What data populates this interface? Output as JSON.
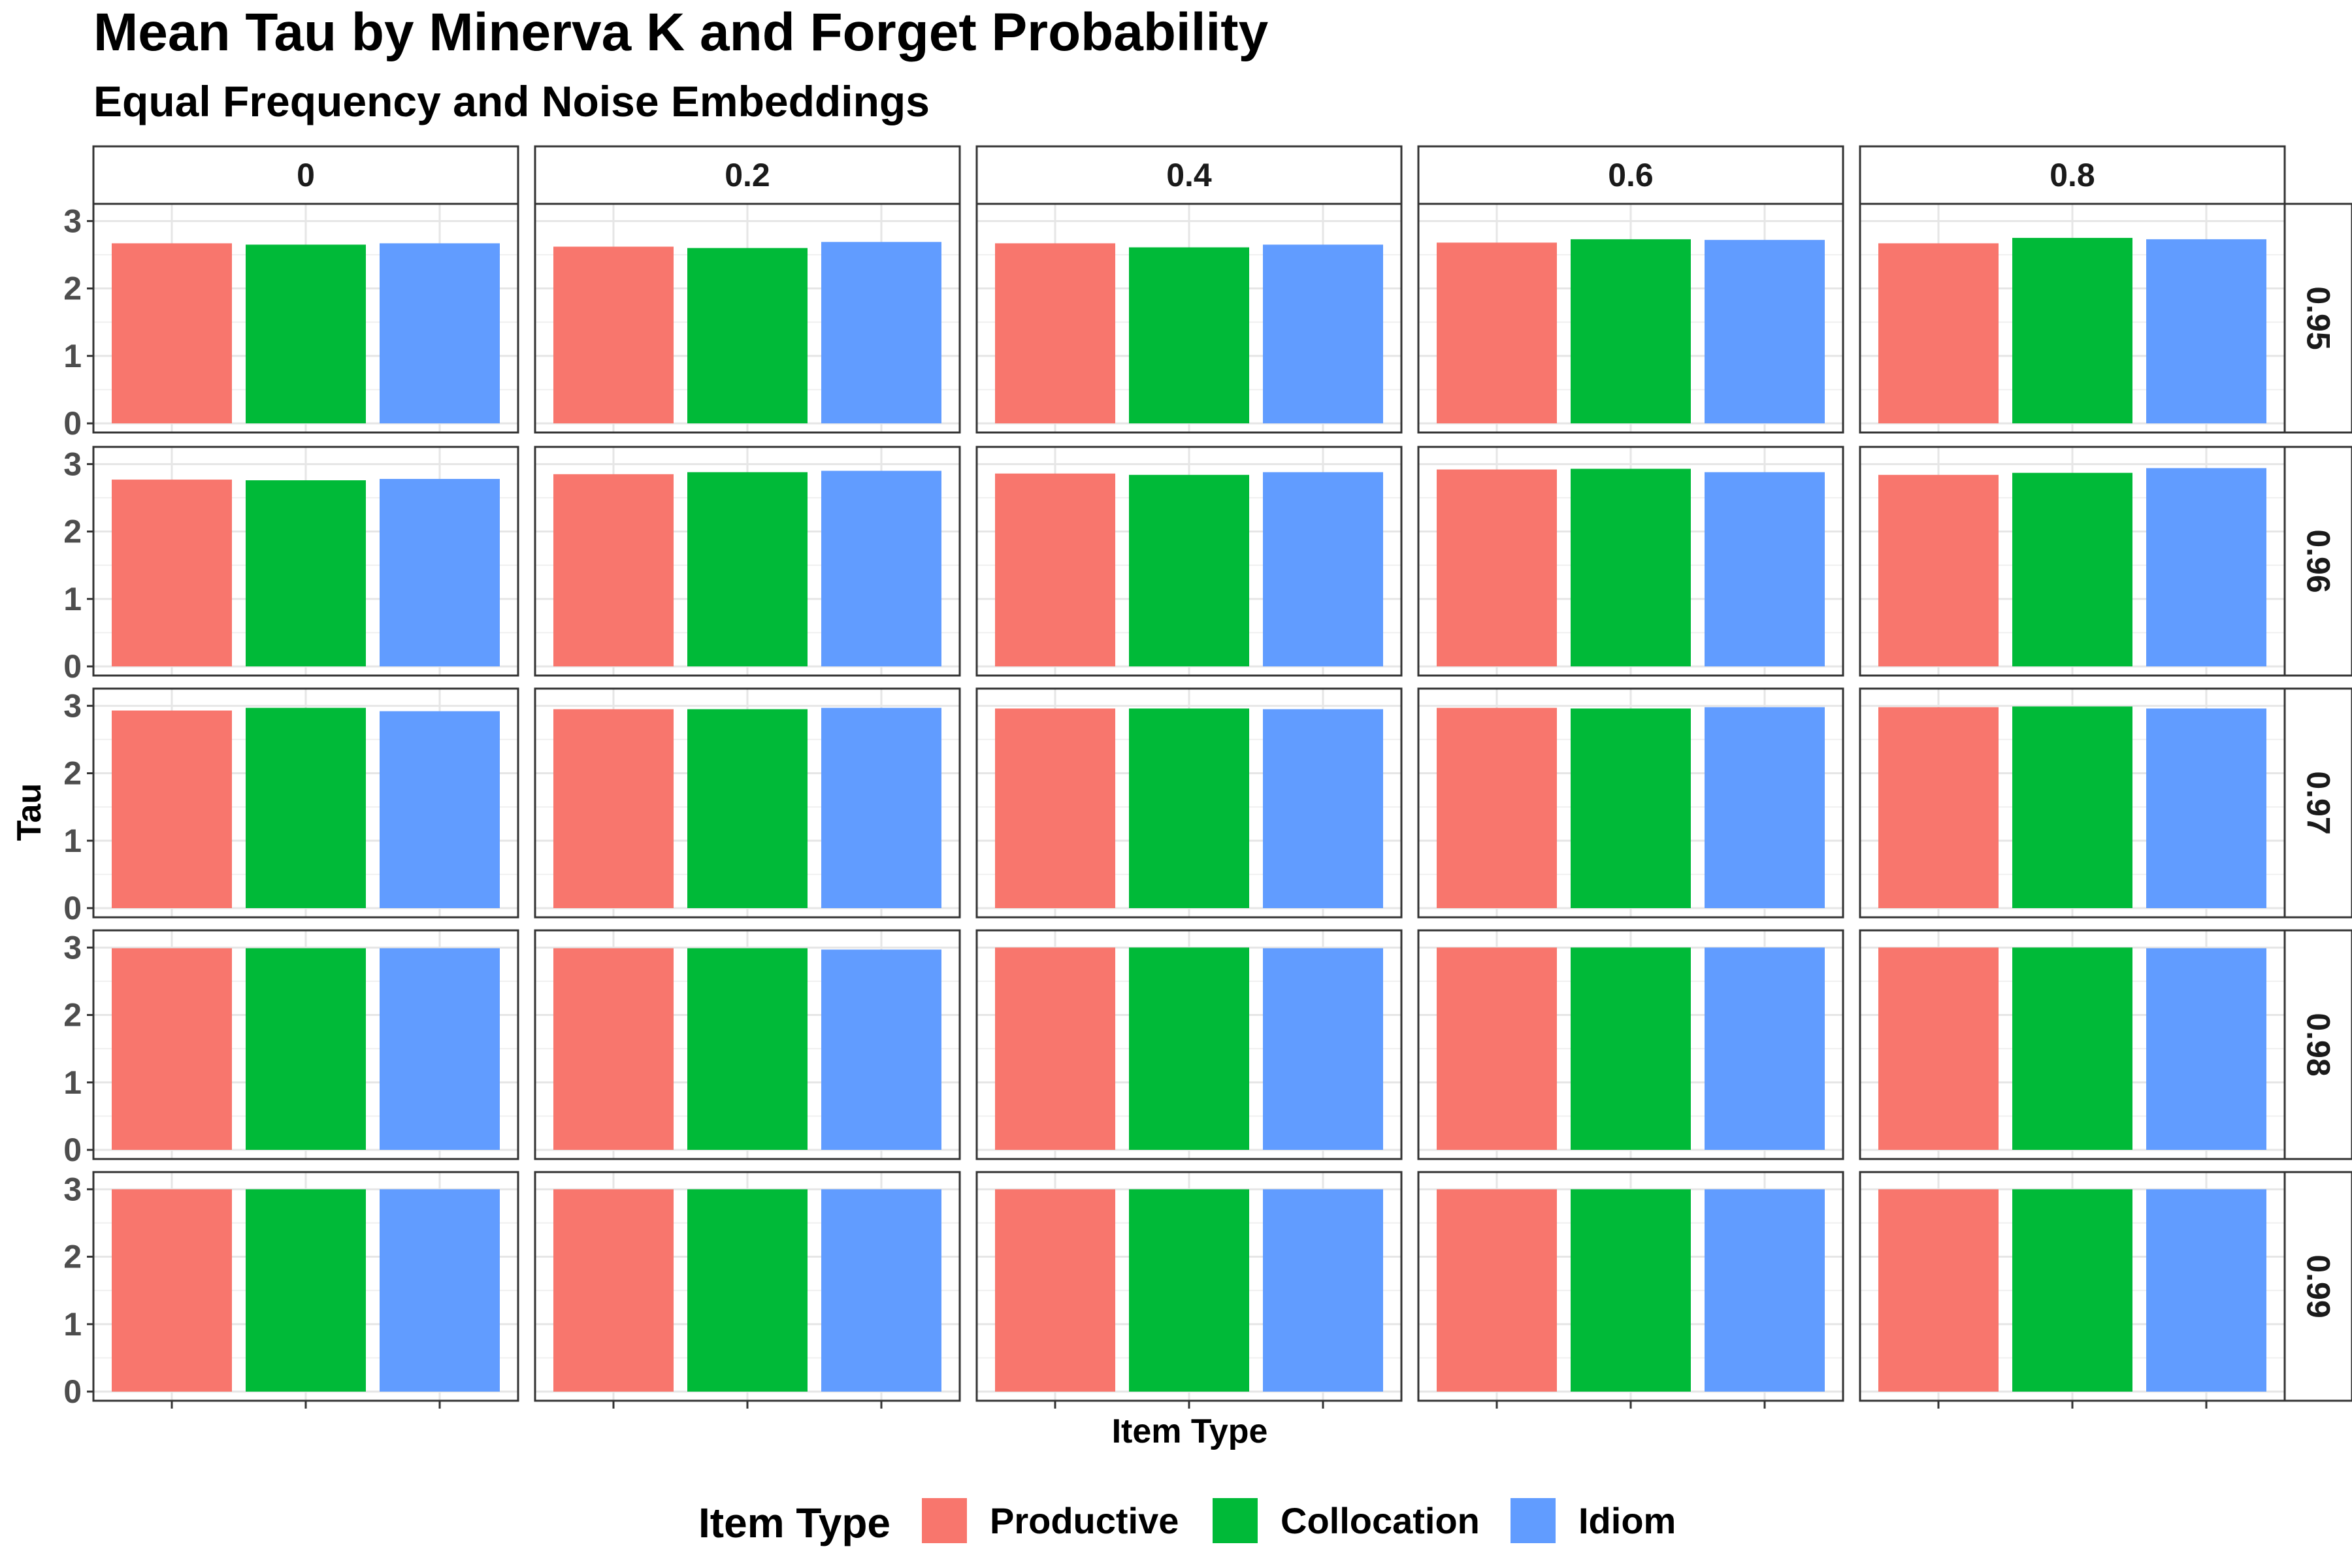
{
  "chart_data": {
    "type": "bar",
    "title": "Mean Tau by Minerva K and Forget Probability",
    "subtitle": "Equal Frequency and Noise Embeddings",
    "xlabel": "Item Type",
    "ylabel": "Tau",
    "ylim": [
      0,
      3.1
    ],
    "y_ticks": [
      0,
      1,
      2,
      3
    ],
    "grid": true,
    "legend": {
      "title": "Item Type",
      "position": "bottom",
      "entries": [
        "Productive",
        "Collocation",
        "Idiom"
      ]
    },
    "categories": [
      "Productive",
      "Collocation",
      "Idiom"
    ],
    "colors": {
      "Productive": "#F8766D",
      "Collocation": "#00BA38",
      "Idiom": "#619CFF"
    },
    "facet_columns": [
      "0",
      "0.2",
      "0.4",
      "0.6",
      "0.8"
    ],
    "facet_rows": [
      "0.95",
      "0.96",
      "0.97",
      "0.98",
      "0.99"
    ],
    "panels": [
      {
        "row": "0.95",
        "col": "0",
        "values": [
          2.67,
          2.65,
          2.67
        ]
      },
      {
        "row": "0.95",
        "col": "0.2",
        "values": [
          2.62,
          2.6,
          2.69
        ]
      },
      {
        "row": "0.95",
        "col": "0.4",
        "values": [
          2.67,
          2.61,
          2.65
        ]
      },
      {
        "row": "0.95",
        "col": "0.6",
        "values": [
          2.68,
          2.73,
          2.72
        ]
      },
      {
        "row": "0.95",
        "col": "0.8",
        "values": [
          2.67,
          2.75,
          2.73
        ]
      },
      {
        "row": "0.96",
        "col": "0",
        "values": [
          2.77,
          2.76,
          2.78
        ]
      },
      {
        "row": "0.96",
        "col": "0.2",
        "values": [
          2.85,
          2.88,
          2.9
        ]
      },
      {
        "row": "0.96",
        "col": "0.4",
        "values": [
          2.86,
          2.84,
          2.88
        ]
      },
      {
        "row": "0.96",
        "col": "0.6",
        "values": [
          2.92,
          2.93,
          2.88
        ]
      },
      {
        "row": "0.96",
        "col": "0.8",
        "values": [
          2.84,
          2.87,
          2.94
        ]
      },
      {
        "row": "0.97",
        "col": "0",
        "values": [
          2.93,
          2.97,
          2.92
        ]
      },
      {
        "row": "0.97",
        "col": "0.2",
        "values": [
          2.95,
          2.95,
          2.97
        ]
      },
      {
        "row": "0.97",
        "col": "0.4",
        "values": [
          2.96,
          2.96,
          2.95
        ]
      },
      {
        "row": "0.97",
        "col": "0.6",
        "values": [
          2.97,
          2.96,
          2.98
        ]
      },
      {
        "row": "0.97",
        "col": "0.8",
        "values": [
          2.98,
          2.99,
          2.96
        ]
      },
      {
        "row": "0.98",
        "col": "0",
        "values": [
          2.99,
          2.99,
          2.99
        ]
      },
      {
        "row": "0.98",
        "col": "0.2",
        "values": [
          2.99,
          2.99,
          2.97
        ]
      },
      {
        "row": "0.98",
        "col": "0.4",
        "values": [
          3.0,
          3.0,
          2.99
        ]
      },
      {
        "row": "0.98",
        "col": "0.6",
        "values": [
          3.0,
          3.0,
          3.0
        ]
      },
      {
        "row": "0.98",
        "col": "0.8",
        "values": [
          3.0,
          3.0,
          2.99
        ]
      },
      {
        "row": "0.99",
        "col": "0",
        "values": [
          3.0,
          3.0,
          3.0
        ]
      },
      {
        "row": "0.99",
        "col": "0.2",
        "values": [
          3.0,
          3.0,
          3.0
        ]
      },
      {
        "row": "0.99",
        "col": "0.4",
        "values": [
          3.0,
          3.0,
          3.0
        ]
      },
      {
        "row": "0.99",
        "col": "0.6",
        "values": [
          3.0,
          3.0,
          3.0
        ]
      },
      {
        "row": "0.99",
        "col": "0.8",
        "values": [
          3.0,
          3.0,
          3.0
        ]
      }
    ]
  }
}
